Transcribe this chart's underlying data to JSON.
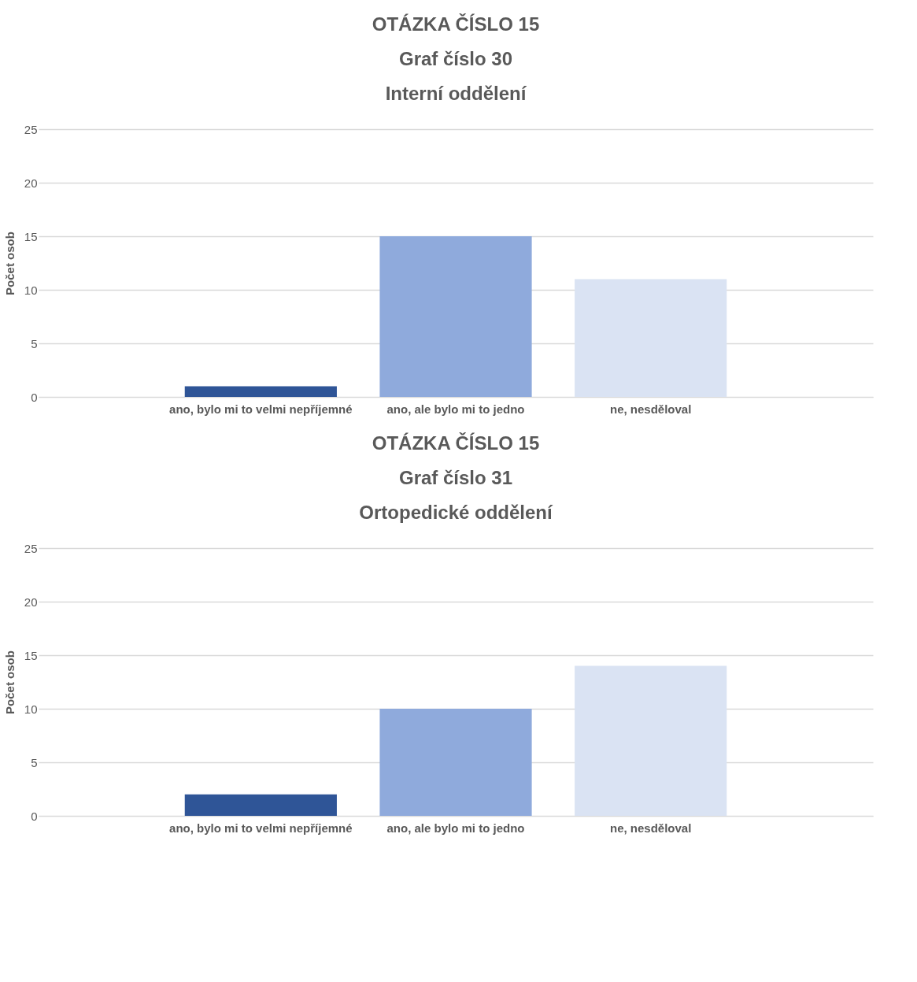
{
  "chart_data": [
    {
      "type": "bar",
      "title": "OTÁZKA  ČÍSLO 15\nGraf číslo 30\nInterní oddělení",
      "ylabel": "Počet osob",
      "categories": [
        "ano, bylo mi to velmi nepříjemné",
        "ano, ale bylo mi to jedno",
        "ne, nesděloval"
      ],
      "values": [
        1,
        15,
        11
      ],
      "colors": [
        "#2f5597",
        "#8faadc",
        "#dae3f3"
      ],
      "ylim": [
        0,
        25
      ],
      "yticks": [
        0,
        5,
        10,
        15,
        20,
        25
      ],
      "grid": "y"
    },
    {
      "type": "bar",
      "title": "OTÁZKA  ČÍSLO 15\nGraf číslo 31\nOrtopedické oddělení",
      "ylabel": "Počet osob",
      "categories": [
        "ano, bylo mi to velmi nepříjemné",
        "ano, ale bylo mi to jedno",
        "ne, nesděloval"
      ],
      "values": [
        2,
        10,
        14
      ],
      "colors": [
        "#2f5597",
        "#8faadc",
        "#dae3f3"
      ],
      "ylim": [
        0,
        25
      ],
      "yticks": [
        0,
        5,
        10,
        15,
        20,
        25
      ],
      "grid": "y"
    }
  ]
}
